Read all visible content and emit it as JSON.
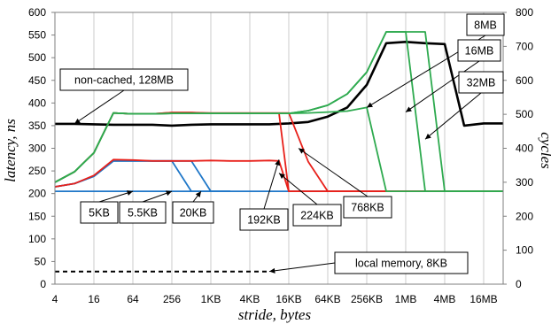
{
  "chart_data": {
    "type": "line",
    "title": "",
    "xlabel": "stride, bytes",
    "ylabel": "latency, ns",
    "y2label": "cycles",
    "x_scale": "log2",
    "x_ticks": [
      4,
      16,
      64,
      256,
      1024,
      4096,
      16384,
      65536,
      262144,
      1048576,
      4194304,
      16777216
    ],
    "x_tick_labels": [
      "4",
      "16",
      "64",
      "256",
      "1KB",
      "4KB",
      "16KB",
      "64KB",
      "256KB",
      "1MB",
      "4MB",
      "16MB"
    ],
    "xlim": [
      4,
      33554432
    ],
    "ylim": [
      0,
      600
    ],
    "y_ticks": [
      0,
      50,
      100,
      150,
      200,
      250,
      300,
      350,
      400,
      450,
      500,
      550,
      600
    ],
    "y2lim": [
      0,
      800
    ],
    "y2_ticks": [
      0,
      100,
      200,
      300,
      400,
      500,
      600,
      700,
      800
    ],
    "grid": "vertical",
    "series": [
      {
        "name": "non-cached, 128MB",
        "color": "#000000",
        "style": "solid",
        "x": [
          4,
          8,
          16,
          32,
          64,
          128,
          256,
          512,
          1024,
          2048,
          4096,
          8192,
          16384,
          32768,
          65536,
          131072,
          262144,
          524288,
          1048576,
          2097152,
          4194304,
          8388608,
          16777216,
          33554432
        ],
        "y": [
          354,
          354,
          353,
          352,
          352,
          352,
          350,
          352,
          353,
          353,
          353,
          353,
          355,
          358,
          370,
          390,
          440,
          532,
          535,
          532,
          530,
          350,
          355,
          355
        ]
      },
      {
        "name": "local memory, 8KB",
        "color": "#000000",
        "style": "dashed",
        "x": [
          4,
          8,
          16,
          32,
          64,
          128,
          256,
          512,
          1024,
          2048,
          4096,
          8192
        ],
        "y": [
          28,
          28,
          28,
          28,
          28,
          28,
          28,
          28,
          28,
          28,
          28,
          28
        ]
      },
      {
        "name": "5KB",
        "color": "#1F77C8",
        "style": "solid",
        "x": [
          4,
          8,
          16,
          32,
          64,
          128,
          256,
          512,
          1024,
          2048,
          4096,
          8192,
          16384,
          32768,
          65536,
          131072,
          262144,
          524288,
          1048576,
          2097152,
          4194304,
          8388608,
          16777216,
          33554432
        ],
        "y": [
          205,
          205,
          205,
          205,
          205,
          205,
          205,
          205,
          205,
          205,
          205,
          205,
          205,
          205,
          205,
          205,
          205,
          205,
          205,
          205,
          205,
          205,
          205,
          205
        ]
      },
      {
        "name": "5.5KB",
        "color": "#1F77C8",
        "style": "solid",
        "x": [
          4,
          8,
          16,
          32,
          64,
          128,
          256,
          512,
          1024,
          2048
        ],
        "y": [
          215,
          222,
          238,
          272,
          272,
          272,
          272,
          205,
          205,
          205
        ]
      },
      {
        "name": "20KB",
        "color": "#1F77C8",
        "style": "solid",
        "x": [
          4,
          8,
          16,
          32,
          64,
          128,
          256,
          512,
          1024,
          2048
        ],
        "y": [
          215,
          222,
          238,
          272,
          272,
          272,
          272,
          272,
          205,
          205
        ]
      },
      {
        "name": "192KB",
        "color": "#E8201A",
        "style": "solid",
        "x": [
          4,
          8,
          16,
          32,
          64,
          128,
          256,
          512,
          1024,
          2048,
          4096,
          8192,
          11585,
          16384,
          32768,
          65536,
          131072,
          262144,
          524288,
          1048576,
          2097152,
          4194304,
          8388608,
          16777216,
          33554432
        ],
        "y": [
          225,
          248,
          290,
          378,
          376,
          376,
          379,
          379,
          377,
          377,
          377,
          377,
          377,
          205,
          205,
          205,
          205,
          205,
          205,
          205,
          205,
          205,
          205,
          205,
          205
        ]
      },
      {
        "name": "224KB",
        "color": "#E8201A",
        "style": "solid",
        "x": [
          4,
          8,
          16,
          32,
          64,
          128,
          256,
          512,
          1024,
          2048,
          4096,
          8192,
          11585,
          16384,
          32768,
          65536,
          131072,
          262144,
          524288,
          1048576,
          2097152,
          4194304,
          8388608,
          16777216,
          33554432
        ],
        "y": [
          215,
          222,
          240,
          275,
          274,
          272,
          272,
          272,
          273,
          272,
          272,
          273,
          272,
          205,
          205,
          205,
          205,
          205,
          205,
          205,
          205,
          205,
          205,
          205,
          205
        ]
      },
      {
        "name": "768KB",
        "color": "#E8201A",
        "style": "solid",
        "x": [
          4,
          8,
          16,
          32,
          64,
          128,
          256,
          512,
          1024,
          2048,
          4096,
          8192,
          16384,
          32768,
          65536,
          131072,
          262144,
          524288,
          1048576,
          2097152,
          4194304,
          8388608,
          16777216,
          33554432
        ],
        "y": [
          225,
          248,
          290,
          378,
          376,
          376,
          379,
          379,
          378,
          378,
          378,
          378,
          378,
          270,
          205,
          205,
          205,
          205,
          205,
          205,
          205,
          205,
          205,
          205
        ]
      },
      {
        "name": "8MB",
        "color": "#2EAA4F",
        "style": "solid",
        "x": [
          4,
          8,
          16,
          32,
          64,
          128,
          256,
          512,
          1024,
          2048,
          4096,
          8192,
          16384,
          32768,
          65536,
          131072,
          262144,
          524288,
          1048576,
          2097152,
          4194304,
          8388608,
          16777216,
          33554432
        ],
        "y": [
          225,
          248,
          290,
          378,
          376,
          376,
          377,
          377,
          377,
          377,
          377,
          377,
          377,
          378,
          380,
          382,
          390,
          205,
          205,
          205,
          205,
          205,
          205,
          205
        ]
      },
      {
        "name": "16MB",
        "color": "#2EAA4F",
        "style": "solid",
        "x": [
          4,
          8,
          16,
          32,
          64,
          128,
          256,
          512,
          1024,
          2048,
          4096,
          8192,
          16384,
          32768,
          65536,
          131072,
          262144,
          524288,
          1048576,
          2097152,
          4194304,
          8388608,
          16777216,
          33554432
        ],
        "y": [
          225,
          248,
          290,
          378,
          376,
          376,
          377,
          377,
          377,
          377,
          377,
          377,
          377,
          383,
          395,
          420,
          468,
          557,
          557,
          205,
          205,
          205,
          205,
          205
        ]
      },
      {
        "name": "32MB",
        "color": "#2EAA4F",
        "style": "solid",
        "x": [
          4,
          8,
          16,
          32,
          64,
          128,
          256,
          512,
          1024,
          2048,
          4096,
          8192,
          16384,
          32768,
          65536,
          131072,
          262144,
          524288,
          1048576,
          2097152,
          4194304,
          8388608,
          16777216,
          33554432
        ],
        "y": [
          225,
          248,
          290,
          378,
          376,
          376,
          377,
          377,
          377,
          377,
          377,
          377,
          377,
          383,
          395,
          420,
          468,
          557,
          557,
          557,
          205,
          205,
          205,
          205
        ]
      }
    ],
    "annotations": [
      {
        "text": "non-cached, 128MB",
        "target_series": "non-cached, 128MB",
        "point": [
          8,
          354
        ]
      },
      {
        "text": "local memory, 8KB",
        "target_series": "local memory, 8KB",
        "point": [
          8192,
          28
        ]
      },
      {
        "text": "5KB",
        "target_series": "5KB",
        "point": [
          64,
          205
        ]
      },
      {
        "text": "5.5KB",
        "target_series": "5.5KB",
        "point": [
          256,
          205
        ]
      },
      {
        "text": "20KB",
        "target_series": "20KB",
        "point": [
          724,
          205
        ]
      },
      {
        "text": "192KB",
        "target_series": "192KB",
        "point": [
          11585,
          275
        ]
      },
      {
        "text": "224KB",
        "target_series": "224KB",
        "point": [
          11585,
          245
        ]
      },
      {
        "text": "768KB",
        "target_series": "768KB",
        "point": [
          23170,
          300
        ]
      },
      {
        "text": "8MB",
        "target_series": "8MB",
        "point": [
          262144,
          390
        ]
      },
      {
        "text": "16MB",
        "target_series": "16MB",
        "point": [
          1048576,
          380
        ]
      },
      {
        "text": "32MB",
        "target_series": "32MB",
        "point": [
          2097152,
          320
        ]
      }
    ]
  }
}
